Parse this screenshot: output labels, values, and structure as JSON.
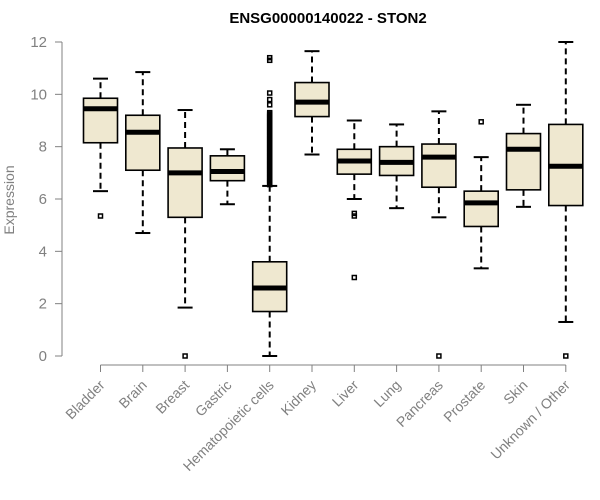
{
  "chart_data": {
    "type": "boxplot",
    "title": "ENSG00000140022 - STON2",
    "xlabel": "",
    "ylabel": "Expression",
    "ylim": [
      0,
      12
    ],
    "yticks": [
      0,
      2,
      4,
      6,
      8,
      10,
      12
    ],
    "box_fill": "#efe8d0",
    "categories": [
      "Bladder",
      "Brain",
      "Breast",
      "Gastric",
      "Hematopoietic cells",
      "Kidney",
      "Liver",
      "Lung",
      "Pancreas",
      "Prostate",
      "Skin",
      "Unknown / Other"
    ],
    "boxes": [
      {
        "category": "Bladder",
        "min": 6.3,
        "q1": 8.15,
        "median": 9.45,
        "q3": 9.85,
        "max": 10.6,
        "outliers": [
          5.35
        ]
      },
      {
        "category": "Brain",
        "min": 4.7,
        "q1": 7.1,
        "median": 8.55,
        "q3": 9.2,
        "max": 10.85,
        "outliers": []
      },
      {
        "category": "Breast",
        "min": 1.85,
        "q1": 5.3,
        "median": 7.0,
        "q3": 7.95,
        "max": 9.4,
        "outliers": [
          0.0
        ]
      },
      {
        "category": "Gastric",
        "min": 5.8,
        "q1": 6.7,
        "median": 7.05,
        "q3": 7.65,
        "max": 7.9,
        "outliers": []
      },
      {
        "category": "Hematopoietic cells",
        "min": 0.0,
        "q1": 1.7,
        "median": 2.6,
        "q3": 3.6,
        "max": 6.5,
        "outliers": [
          6.55,
          6.6,
          6.65,
          6.7,
          6.75,
          6.8,
          6.85,
          6.9,
          6.95,
          7.0,
          7.05,
          7.1,
          7.15,
          7.2,
          7.25,
          7.3,
          7.35,
          7.4,
          7.45,
          7.5,
          7.55,
          7.6,
          7.65,
          7.7,
          7.75,
          7.8,
          7.85,
          7.9,
          7.95,
          8.0,
          8.05,
          8.1,
          8.15,
          8.2,
          8.25,
          8.3,
          8.35,
          8.4,
          8.45,
          8.5,
          8.55,
          8.6,
          8.65,
          8.7,
          8.75,
          8.8,
          8.85,
          8.9,
          8.95,
          9.0,
          9.05,
          9.1,
          9.15,
          9.2,
          9.25,
          9.3,
          9.6,
          9.8,
          10.05,
          11.3,
          11.4
        ]
      },
      {
        "category": "Kidney",
        "min": 7.7,
        "q1": 9.15,
        "median": 9.7,
        "q3": 10.45,
        "max": 11.65,
        "outliers": []
      },
      {
        "category": "Liver",
        "min": 6.0,
        "q1": 6.95,
        "median": 7.45,
        "q3": 7.9,
        "max": 9.0,
        "outliers": [
          5.45,
          5.35,
          3.0
        ]
      },
      {
        "category": "Lung",
        "min": 5.65,
        "q1": 6.9,
        "median": 7.4,
        "q3": 8.0,
        "max": 8.85,
        "outliers": []
      },
      {
        "category": "Pancreas",
        "min": 5.3,
        "q1": 6.45,
        "median": 7.6,
        "q3": 8.1,
        "max": 9.35,
        "outliers": [
          0.0
        ]
      },
      {
        "category": "Prostate",
        "min": 3.35,
        "q1": 4.95,
        "median": 5.85,
        "q3": 6.3,
        "max": 7.6,
        "outliers": [
          8.95
        ]
      },
      {
        "category": "Skin",
        "min": 5.7,
        "q1": 6.35,
        "median": 7.9,
        "q3": 8.5,
        "max": 9.6,
        "outliers": []
      },
      {
        "category": "Unknown / Other",
        "min": 1.3,
        "q1": 5.75,
        "median": 7.25,
        "q3": 8.85,
        "max": 12.0,
        "outliers": [
          0.0
        ]
      }
    ]
  }
}
